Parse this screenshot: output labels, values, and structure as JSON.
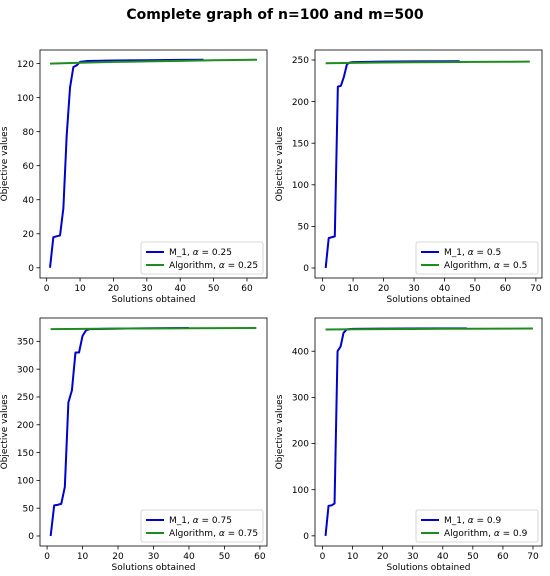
{
  "figure": {
    "title": "Complete graph of n=100 and m=500"
  },
  "colors": {
    "m1": "#0000cc",
    "algorithm": "#1f8c1f"
  },
  "chart_data": [
    {
      "type": "line",
      "xlabel": "Solutions obtained",
      "ylabel": "Objective values",
      "xlim": [
        -2,
        66
      ],
      "ylim": [
        -6,
        128
      ],
      "xticks": [
        0,
        10,
        20,
        30,
        40,
        50,
        60
      ],
      "yticks": [
        0,
        20,
        40,
        60,
        80,
        100,
        120
      ],
      "legend": "lower-right",
      "series": [
        {
          "name": "M_1, α = 0.25",
          "color_key": "m1",
          "x": [
            1,
            2,
            3,
            4,
            5,
            6,
            7,
            8,
            9,
            10,
            12,
            20,
            30,
            40,
            47
          ],
          "y": [
            0,
            18,
            18.5,
            19,
            35,
            78,
            106,
            118,
            119,
            121,
            121.5,
            121.8,
            122,
            122.2,
            122.3
          ]
        },
        {
          "name": "Algorithm, α = 0.25",
          "color_key": "algorithm",
          "x": [
            1,
            10,
            20,
            30,
            40,
            50,
            63
          ],
          "y": [
            120,
            120.5,
            121,
            121.3,
            121.6,
            122,
            122.3
          ]
        }
      ]
    },
    {
      "type": "line",
      "xlabel": "Solutions obtained",
      "ylabel": "Objective values",
      "xlim": [
        -2.5,
        72
      ],
      "ylim": [
        -12,
        262
      ],
      "xticks": [
        0,
        10,
        20,
        30,
        40,
        50,
        60,
        70
      ],
      "yticks": [
        0,
        50,
        100,
        150,
        200,
        250
      ],
      "legend": "lower-right",
      "series": [
        {
          "name": "M_1, α = 0.5",
          "color_key": "m1",
          "x": [
            1,
            2,
            3,
            4,
            5,
            6,
            7,
            8,
            9,
            10,
            20,
            30,
            45
          ],
          "y": [
            0,
            36,
            37,
            38,
            218,
            219,
            230,
            245,
            247,
            247.5,
            248,
            248.3,
            248.5
          ]
        },
        {
          "name": "Algorithm, α = 0.5",
          "color_key": "algorithm",
          "x": [
            1,
            10,
            20,
            30,
            40,
            50,
            60,
            68
          ],
          "y": [
            246,
            246.5,
            247,
            247.3,
            247.5,
            247.7,
            247.9,
            248
          ]
        }
      ]
    },
    {
      "type": "line",
      "xlabel": "Solutions obtained",
      "ylabel": "Objective values",
      "xlim": [
        -2,
        62
      ],
      "ylim": [
        -18,
        392
      ],
      "xticks": [
        0,
        10,
        20,
        30,
        40,
        50,
        60
      ],
      "yticks": [
        0,
        50,
        100,
        150,
        200,
        250,
        300,
        350
      ],
      "legend": "lower-right",
      "series": [
        {
          "name": "M_1, α = 0.75",
          "color_key": "m1",
          "x": [
            1,
            2,
            3,
            4,
            5,
            6,
            7,
            8,
            9,
            10,
            11,
            12,
            20,
            30,
            40
          ],
          "y": [
            0,
            55,
            56,
            58,
            88,
            240,
            262,
            330,
            330,
            360,
            370,
            372,
            373,
            373.5,
            374
          ]
        },
        {
          "name": "Algorithm, α = 0.75",
          "color_key": "algorithm",
          "x": [
            1,
            10,
            20,
            30,
            40,
            50,
            59
          ],
          "y": [
            372,
            372.5,
            373,
            373.3,
            373.5,
            373.7,
            374
          ]
        }
      ]
    },
    {
      "type": "line",
      "xlabel": "Solutions obtained",
      "ylabel": "Objective values",
      "xlim": [
        -2.5,
        73
      ],
      "ylim": [
        -22,
        472
      ],
      "xticks": [
        0,
        10,
        20,
        30,
        40,
        50,
        60,
        70
      ],
      "yticks": [
        0,
        100,
        200,
        300,
        400
      ],
      "legend": "lower-right",
      "series": [
        {
          "name": "M_1, α = 0.9",
          "color_key": "m1",
          "x": [
            1,
            2,
            3,
            4,
            5,
            6,
            7,
            8,
            9,
            10,
            20,
            30,
            40,
            48
          ],
          "y": [
            0,
            65,
            66,
            70,
            400,
            410,
            440,
            447,
            448,
            448.5,
            449,
            449.2,
            449.4,
            449.5
          ]
        },
        {
          "name": "Algorithm, α = 0.9",
          "color_key": "algorithm",
          "x": [
            1,
            10,
            20,
            30,
            40,
            50,
            60,
            70
          ],
          "y": [
            447,
            447.5,
            448,
            448.3,
            448.6,
            448.8,
            449,
            449.3
          ]
        }
      ]
    }
  ]
}
